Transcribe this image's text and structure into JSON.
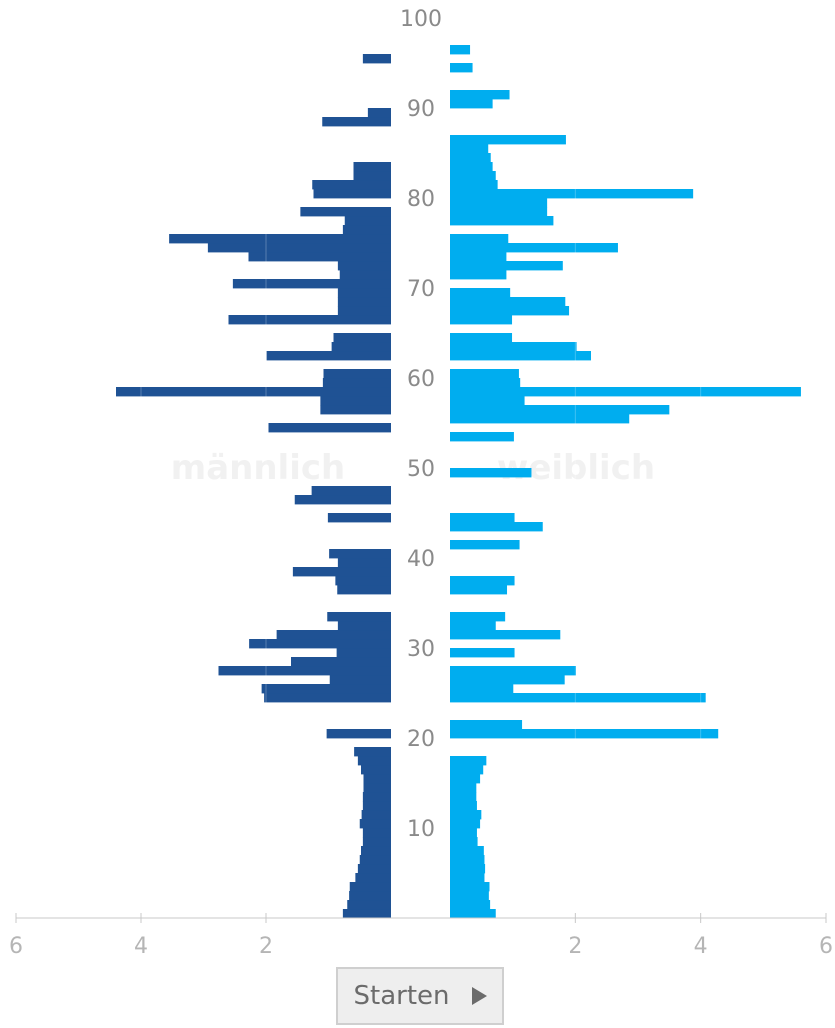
{
  "chart_data": {
    "type": "bar",
    "subtype": "population-pyramid",
    "colors": {
      "male": "#1f5294",
      "female": "#00adef",
      "axis": "#b5b5b5",
      "age_labels": "#8a8a8a",
      "watermark": "#f1f1f1"
    },
    "watermark_left": "männlich",
    "watermark_right": "weiblich",
    "age_ticks": [
      "10",
      "20",
      "30",
      "40",
      "50",
      "60",
      "70",
      "80",
      "90",
      "100"
    ],
    "x_ticks": [
      "6",
      "4",
      "2",
      "2",
      "4",
      "6"
    ],
    "xlim": [
      0,
      6
    ],
    "ages": [
      0,
      1,
      2,
      3,
      4,
      5,
      6,
      7,
      8,
      9,
      10,
      11,
      12,
      13,
      14,
      15,
      16,
      17,
      18,
      19,
      20,
      21,
      22,
      23,
      24,
      25,
      26,
      27,
      28,
      29,
      30,
      31,
      32,
      33,
      34,
      35,
      36,
      37,
      38,
      39,
      40,
      41,
      42,
      43,
      44,
      45,
      46,
      47,
      48,
      49,
      50,
      51,
      52,
      53,
      54,
      55,
      56,
      57,
      58,
      59,
      60,
      61,
      62,
      63,
      64,
      65,
      66,
      67,
      68,
      69,
      70,
      71,
      72,
      73,
      74,
      75,
      76,
      77,
      78,
      79,
      80,
      81,
      82,
      83,
      84,
      85,
      86,
      87,
      88,
      89,
      90,
      91,
      92,
      93,
      94,
      95,
      96,
      97,
      98,
      99
    ],
    "series": [
      {
        "name": "männlich",
        "values": [
          0.77,
          0.7,
          0.67,
          0.66,
          0.57,
          0.53,
          0.5,
          0.48,
          0.45,
          0.45,
          0.5,
          0.47,
          0.45,
          0.45,
          0.44,
          0.44,
          0.48,
          0.53,
          0.59,
          0,
          1.03,
          0,
          0,
          0,
          2.03,
          2.07,
          0.98,
          2.76,
          1.6,
          0.87,
          2.27,
          1.83,
          0.85,
          1.02,
          0,
          0,
          0.86,
          0.89,
          1.57,
          0.85,
          0.99,
          0,
          0,
          0,
          1.01,
          0,
          1.54,
          1.27,
          0,
          0,
          0,
          0,
          0,
          0,
          1.96,
          0,
          1.13,
          1.13,
          4.4,
          1.09,
          1.08,
          0,
          1.99,
          0.95,
          0.92,
          0,
          2.6,
          0.85,
          0.85,
          0.85,
          2.53,
          0.82,
          0.85,
          2.28,
          2.93,
          3.55,
          0.77,
          0.74,
          1.45,
          0,
          1.24,
          1.26,
          0.6,
          0.6,
          0,
          0,
          0,
          0,
          1.1,
          0.37,
          0,
          0,
          0,
          0,
          0,
          0.45,
          0,
          0,
          0,
          0
        ]
      },
      {
        "name": "weiblich",
        "values": [
          0.73,
          0.64,
          0.62,
          0.63,
          0.55,
          0.56,
          0.55,
          0.54,
          0.44,
          0.43,
          0.48,
          0.5,
          0.43,
          0.42,
          0.42,
          0.48,
          0.53,
          0.58,
          0,
          0,
          4.28,
          1.15,
          0,
          0,
          4.08,
          1.01,
          1.83,
          2.01,
          0,
          1.03,
          0,
          1.76,
          0.73,
          0.88,
          0,
          0,
          0.91,
          1.03,
          0,
          0,
          0,
          1.11,
          0,
          1.48,
          1.03,
          0,
          0,
          0,
          0,
          1.3,
          0,
          0,
          0,
          1.02,
          0,
          2.86,
          3.5,
          1.19,
          5.6,
          1.12,
          1.1,
          0,
          2.25,
          2.02,
          0.99,
          0,
          0.99,
          1.9,
          1.84,
          0.96,
          0,
          0.9,
          1.8,
          0.9,
          2.68,
          0.93,
          0,
          1.65,
          1.55,
          1.55,
          3.88,
          0.76,
          0.73,
          0.68,
          0.65,
          0.61,
          1.85,
          0,
          0,
          0,
          0.68,
          0.95,
          0,
          0,
          0.36,
          0,
          0.32,
          0,
          0,
          0
        ]
      }
    ]
  },
  "controls": {
    "start_label": "Starten",
    "play_icon": "play-icon"
  }
}
